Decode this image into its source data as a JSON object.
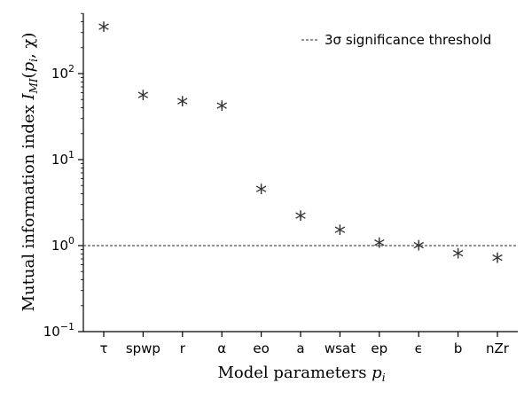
{
  "chart_data": {
    "type": "scatter",
    "yscale": "log",
    "ylim": [
      0.1,
      500
    ],
    "categories": [
      "τ",
      "spwp",
      "r",
      "α",
      "eo",
      "a",
      "wsat",
      "ep",
      "ϵ",
      "b",
      "nZr"
    ],
    "values": [
      330,
      53,
      45,
      40,
      4.3,
      2.1,
      1.45,
      1.02,
      0.95,
      0.77,
      0.68
    ],
    "marker": "*",
    "marker_color": "#333333",
    "xlabel": "Model parameters p_i",
    "ylabel": "Mutual information index I_MI(p_i, χ)",
    "y_ticks": [
      {
        "value": 0.1,
        "base": "10",
        "exp": "−1"
      },
      {
        "value": 1,
        "base": "10",
        "exp": "0"
      },
      {
        "value": 10,
        "base": "10",
        "exp": "1"
      },
      {
        "value": 100,
        "base": "10",
        "exp": "2"
      }
    ],
    "threshold": {
      "value": 1,
      "label": "3σ significance threshold",
      "style": "dashed",
      "color": "#555555"
    },
    "legend_position": "top-right",
    "grid": false
  }
}
